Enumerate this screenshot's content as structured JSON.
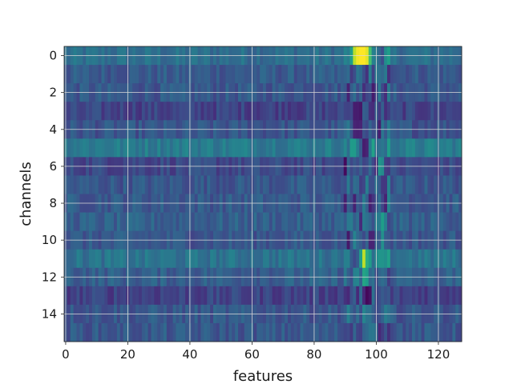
{
  "chart_data": {
    "type": "heatmap",
    "title": "",
    "xlabel": "features",
    "ylabel": "channels",
    "x_range": [
      -0.5,
      127.5
    ],
    "y_range": [
      -0.5,
      15.5
    ],
    "y_inverted": true,
    "x_ticks": [
      0,
      20,
      40,
      60,
      80,
      100,
      120
    ],
    "y_ticks": [
      0,
      2,
      4,
      6,
      8,
      10,
      12,
      14
    ],
    "grid": true,
    "colormap": "viridis",
    "value_range": [
      0,
      1
    ],
    "n_rows": 16,
    "n_cols": 128,
    "row_base_levels": [
      0.36,
      0.28,
      0.27,
      0.2,
      0.26,
      0.42,
      0.22,
      0.27,
      0.28,
      0.3,
      0.27,
      0.38,
      0.3,
      0.2,
      0.27,
      0.27
    ],
    "strong_cells": [
      {
        "row": 0,
        "col": 93,
        "value": 0.9
      },
      {
        "row": 0,
        "col": 94,
        "value": 0.98
      },
      {
        "row": 0,
        "col": 95,
        "value": 1.0
      },
      {
        "row": 0,
        "col": 96,
        "value": 1.0
      },
      {
        "row": 0,
        "col": 97,
        "value": 0.96
      },
      {
        "row": 0,
        "col": 98,
        "value": 0.7
      },
      {
        "row": 0,
        "col": 92,
        "value": 0.55
      },
      {
        "row": 11,
        "col": 96,
        "value": 0.9
      },
      {
        "row": 11,
        "col": 97,
        "value": 0.62
      },
      {
        "row": 11,
        "col": 95,
        "value": 0.55
      },
      {
        "row": 11,
        "col": 98,
        "value": 0.55
      },
      {
        "row": 12,
        "col": 96,
        "value": 0.58
      },
      {
        "row": 12,
        "col": 97,
        "value": 0.55
      },
      {
        "row": 5,
        "col": 96,
        "value": 0.08
      },
      {
        "row": 5,
        "col": 97,
        "value": 0.1
      },
      {
        "row": 13,
        "col": 97,
        "value": 0.02
      },
      {
        "row": 13,
        "col": 98,
        "value": 0.05
      },
      {
        "row": 3,
        "col": 94,
        "value": 0.08
      },
      {
        "row": 4,
        "col": 95,
        "value": 0.1
      },
      {
        "row": 6,
        "col": 101,
        "value": 0.52
      },
      {
        "row": 6,
        "col": 102,
        "value": 0.48
      },
      {
        "row": 9,
        "col": 102,
        "value": 0.55
      },
      {
        "row": 10,
        "col": 102,
        "value": 0.5
      }
    ]
  }
}
